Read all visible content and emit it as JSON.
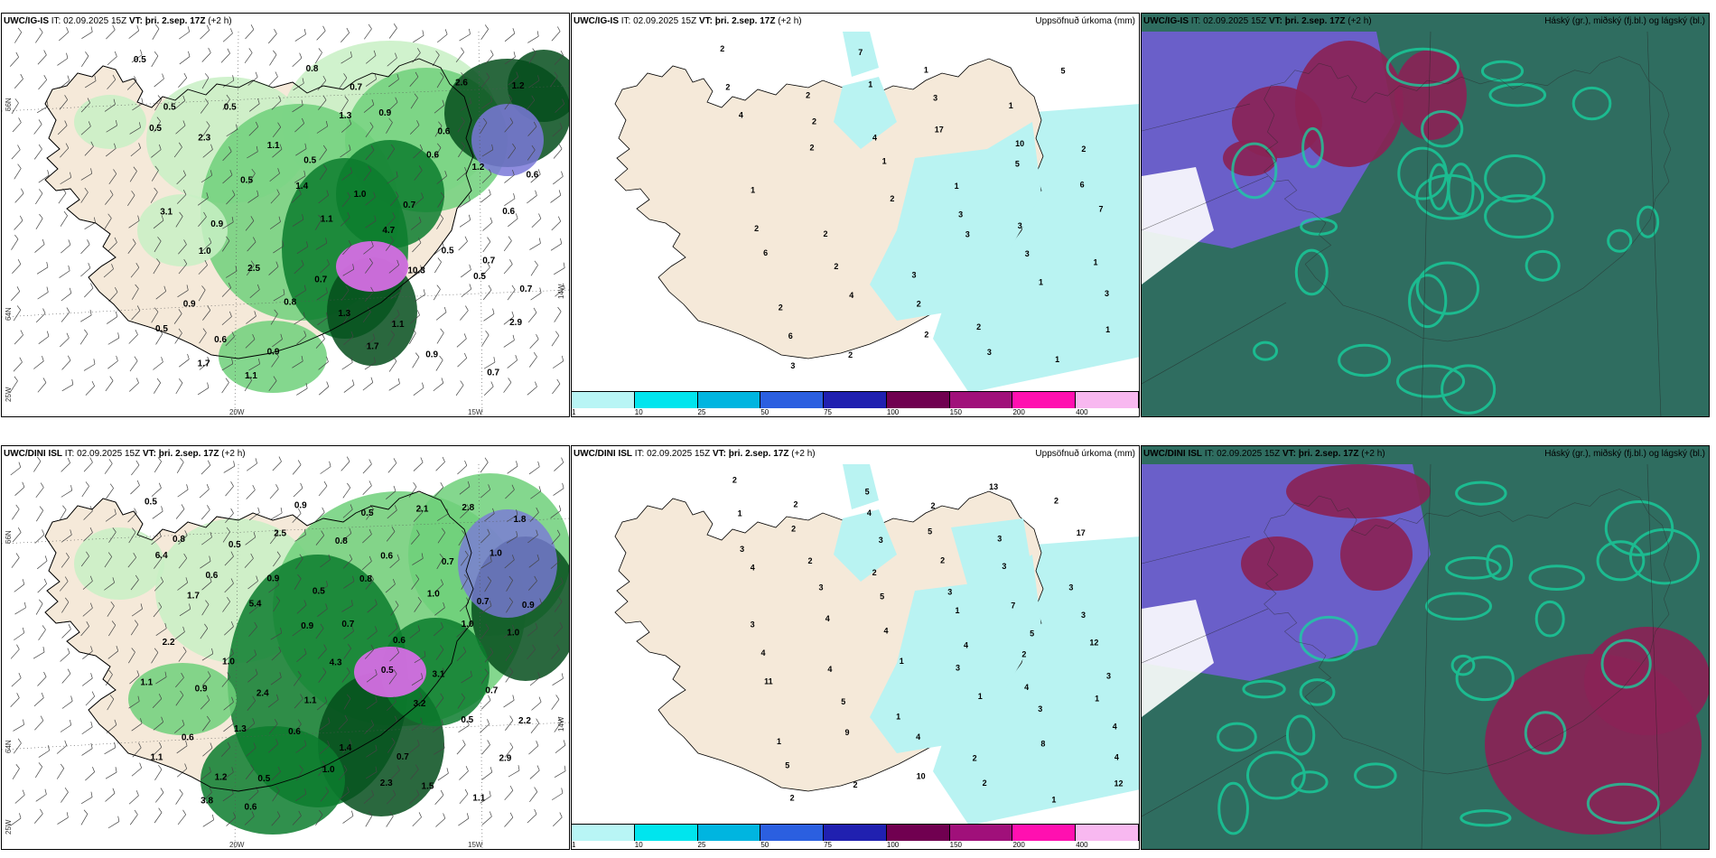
{
  "rows": [
    {
      "model": "UWC/IG-IS",
      "it_label": "IT:",
      "it_value": "02.09.2025 15Z",
      "vt_label": "VT:",
      "vt_value": "þri. 2.sep. 17Z",
      "lead": "(+2 h)",
      "wind_labels": [
        "0.5",
        "0.5",
        "0.5",
        "0.7",
        "0.7",
        "0.9",
        "0.9",
        "0.7",
        "0.6",
        "0.6",
        "0.9",
        "0.7",
        "1.1",
        "0.7",
        "0.5",
        "1.1",
        "1.0",
        "0.5",
        "0.7",
        "0.6",
        "0.8",
        "0.9",
        "1.2",
        "3.1",
        "2.5",
        "1.3",
        "0.9",
        "1.2",
        "2.3",
        "1.4",
        "4.7",
        "0.5",
        "0.5",
        "1.1",
        "1.3",
        "0.6",
        "0.6",
        "1.0",
        "0.8",
        "1.7",
        "2.6",
        "0.5",
        "0.5",
        "1.1",
        "10.3",
        "2.9",
        "1.7"
      ],
      "precip_labels": [
        "2",
        "2",
        "4",
        "1",
        "3",
        "1",
        "2",
        "2",
        "1",
        "1",
        "2",
        "1",
        "2",
        "3",
        "2",
        "1",
        "2",
        "2",
        "1",
        "3",
        "3",
        "3",
        "6",
        "7",
        "3",
        "10",
        "6",
        "2",
        "2",
        "2",
        "3",
        "5",
        "4",
        "2",
        "2",
        "3",
        "1",
        "1",
        "3",
        "1",
        "17",
        "5",
        "7",
        "6",
        "4",
        "2"
      ],
      "axes": {
        "lat1": "66N",
        "lat2": "64N",
        "lat3": "25W",
        "lon1": "20W",
        "lon2": "15W",
        "lon3": "14W"
      }
    },
    {
      "model": "UWC/DINI ISL",
      "it_label": "IT:",
      "it_value": "02.09.2025 15Z",
      "vt_label": "VT:",
      "vt_value": "þri. 2.sep. 17Z",
      "lead": "(+2 h)",
      "wind_labels": [
        "0.5",
        "0.5",
        "0.5",
        "0.6",
        "0.7",
        "0.6",
        "0.5",
        "0.5",
        "0.7",
        "0.9",
        "1.0",
        "1.1",
        "0.7",
        "1.1",
        "0.8",
        "0.9",
        "0.7",
        "3.1",
        "2.2",
        "1.2",
        "0.9",
        "0.6",
        "0.7",
        "2.2",
        "2.4",
        "1.4",
        "1.5",
        "1.8",
        "0.6",
        "0.9",
        "0.5",
        "0.5",
        "1.1",
        "0.6",
        "0.8",
        "1.0",
        "1.0",
        "0.9",
        "0.6",
        "2.3",
        "2.8",
        "6.4",
        "5.4",
        "4.3",
        "3.2",
        "2.9",
        "3.8",
        "2.5",
        "0.8",
        "1.0",
        "1.1",
        "1.3",
        "1.0",
        "2.1",
        "1.0",
        "1.7"
      ],
      "precip_labels": [
        "2",
        "2",
        "2",
        "1",
        "2",
        "1",
        "1",
        "2",
        "2",
        "3",
        "3",
        "3",
        "4",
        "1",
        "2",
        "1",
        "1",
        "2",
        "5",
        "4",
        "4",
        "4",
        "5",
        "5",
        "5",
        "3",
        "3",
        "4",
        "5",
        "4",
        "2",
        "2",
        "3",
        "3",
        "4",
        "3",
        "3",
        "4",
        "2",
        "4",
        "2",
        "7",
        "12",
        "11",
        "9",
        "10",
        "13",
        "17",
        "4",
        "4",
        "1",
        "1",
        "8",
        "12",
        "2",
        "3",
        "3",
        "5",
        "3"
      ],
      "axes": {
        "lat1": "66N",
        "lat2": "64N",
        "lat3": "25W",
        "lon1": "20W",
        "lon2": "15W",
        "lon3": "14W"
      }
    }
  ],
  "precip_title": "Uppsöfnuð úrkoma (mm)",
  "cloud_title": "Háský (gr.), miðský (fj.bl.) og lágský (bl.)",
  "colorbar": {
    "ticks": [
      "1",
      "10",
      "25",
      "50",
      "75",
      "100",
      "150",
      "200",
      "400"
    ],
    "colors": [
      "#b8f5f5",
      "#00e5ee",
      "#00b5e0",
      "#2b5fe0",
      "#2020b0",
      "#700050",
      "#a0107a",
      "#ff10b0",
      "#f8b8f0"
    ]
  },
  "colors": {
    "land": "#f5e9d9",
    "sea": "#ffffff",
    "precip_light": "#b9f3f2",
    "wind_green1": "#c8f0c4",
    "wind_green2": "#6fd07a",
    "wind_green3": "#0c7d2e",
    "wind_green4": "#054d1c",
    "wind_purple": "#d46ee3",
    "cloud_high": "#6a5fc9",
    "cloud_mid": "#8a2356",
    "cloud_low": "#2f6d60",
    "cloud_edge": "#16d6a0"
  }
}
